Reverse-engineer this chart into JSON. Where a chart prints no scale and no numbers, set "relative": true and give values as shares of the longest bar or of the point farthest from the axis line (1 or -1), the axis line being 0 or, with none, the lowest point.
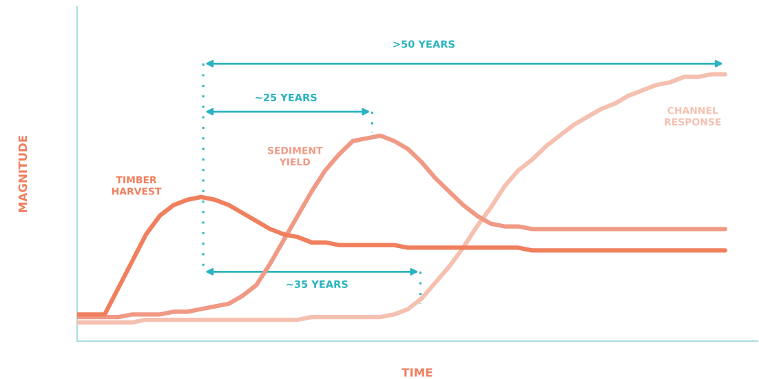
{
  "chart_data": {
    "type": "line",
    "relative": true,
    "xlabel": "TIME",
    "ylabel": "MAGNITUDE",
    "categories": [
      null,
      null,
      null,
      null,
      null,
      null,
      null,
      null,
      null,
      null,
      null,
      null,
      null,
      null,
      null,
      null,
      null,
      null,
      null,
      null,
      null,
      null,
      null,
      null,
      null,
      null,
      null,
      null,
      null,
      null,
      null,
      null,
      null,
      null,
      null,
      null,
      null,
      null,
      null,
      null,
      null,
      null,
      null,
      null,
      null,
      null,
      null,
      null
    ],
    "series": [
      {
        "name": "TIMBER\nHARVEST",
        "color": "#f07f5e",
        "values": [
          0.1,
          0.1,
          0.1,
          0.2,
          0.3,
          0.4,
          0.47,
          0.51,
          0.53,
          0.54,
          0.53,
          0.51,
          0.48,
          0.45,
          0.42,
          0.4,
          0.39,
          0.37,
          0.37,
          0.36,
          0.36,
          0.36,
          0.36,
          0.36,
          0.35,
          0.35,
          0.35,
          0.35,
          0.35,
          0.35,
          0.35,
          0.35,
          0.35,
          0.34,
          0.34,
          0.34,
          0.34,
          0.34,
          0.34,
          0.34,
          0.34,
          0.34,
          0.34,
          0.34,
          0.34,
          0.34,
          0.34,
          0.34
        ]
      },
      {
        "name": "SEDIMENT\nYIELD",
        "color": "#f09a86",
        "values": [
          0.09,
          0.09,
          0.09,
          0.09,
          0.1,
          0.1,
          0.1,
          0.11,
          0.11,
          0.12,
          0.13,
          0.14,
          0.17,
          0.21,
          0.29,
          0.38,
          0.47,
          0.56,
          0.64,
          0.7,
          0.75,
          0.76,
          0.77,
          0.75,
          0.72,
          0.67,
          0.61,
          0.56,
          0.51,
          0.47,
          0.44,
          0.43,
          0.43,
          0.42,
          0.42,
          0.42,
          0.42,
          0.42,
          0.42,
          0.42,
          0.42,
          0.42,
          0.42,
          0.42,
          0.42,
          0.42,
          0.42,
          0.42
        ]
      },
      {
        "name": "CHANNEL\nRESPONSE",
        "color": "#f5c0b0",
        "values": [
          0.07,
          0.07,
          0.07,
          0.07,
          0.07,
          0.08,
          0.08,
          0.08,
          0.08,
          0.08,
          0.08,
          0.08,
          0.08,
          0.08,
          0.08,
          0.08,
          0.08,
          0.09,
          0.09,
          0.09,
          0.09,
          0.09,
          0.09,
          0.1,
          0.12,
          0.16,
          0.22,
          0.28,
          0.35,
          0.43,
          0.5,
          0.58,
          0.64,
          0.68,
          0.73,
          0.77,
          0.81,
          0.84,
          0.87,
          0.89,
          0.92,
          0.94,
          0.96,
          0.97,
          0.99,
          0.99,
          1,
          1
        ]
      }
    ],
    "annotations": [
      ">50 YEARS",
      "~25 YEARS",
      "~35 YEARS"
    ],
    "legend": false,
    "marker": "none",
    "line_style": "solid",
    "tick_labels": false
  }
}
